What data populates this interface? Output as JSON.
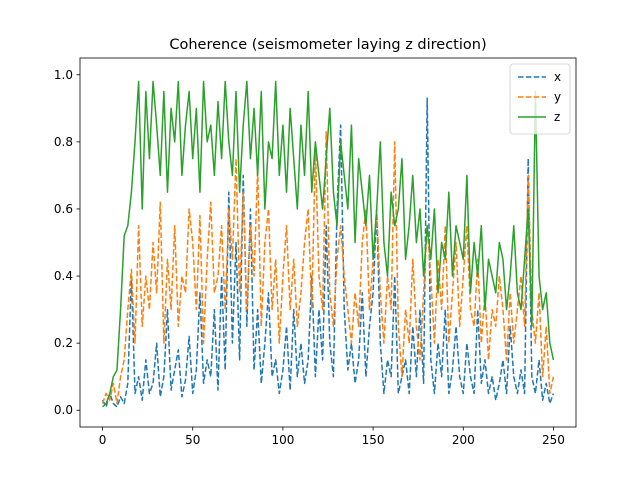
{
  "chart_data": {
    "type": "line",
    "title": "Coherence (seismometer laying z direction)",
    "xlabel": "",
    "ylabel": "",
    "xlim": [
      -12.5,
      262.5
    ],
    "ylim": [
      -0.05,
      1.05
    ],
    "xticks": [
      0,
      50,
      100,
      150,
      200,
      250
    ],
    "yticks": [
      0.0,
      0.2,
      0.4,
      0.6,
      0.8,
      1.0
    ],
    "xtick_labels": [
      "0",
      "50",
      "100",
      "150",
      "200",
      "250"
    ],
    "ytick_labels": [
      "0.0",
      "0.2",
      "0.4",
      "0.6",
      "0.8",
      "1.0"
    ],
    "grid": false,
    "legend": "top-right",
    "series": [
      {
        "name": "x",
        "color": "#1f77b4",
        "linestyle": "dashed",
        "x": [
          0,
          2,
          4,
          6,
          8,
          10,
          12,
          14,
          16,
          18,
          20,
          22,
          24,
          26,
          28,
          30,
          32,
          34,
          36,
          38,
          40,
          42,
          44,
          46,
          48,
          50,
          52,
          54,
          56,
          58,
          60,
          62,
          64,
          66,
          68,
          70,
          72,
          74,
          76,
          78,
          80,
          82,
          84,
          86,
          88,
          90,
          92,
          94,
          96,
          98,
          100,
          102,
          104,
          106,
          108,
          110,
          112,
          114,
          116,
          118,
          120,
          122,
          124,
          126,
          128,
          130,
          132,
          134,
          136,
          138,
          140,
          142,
          144,
          146,
          148,
          150,
          152,
          154,
          156,
          158,
          160,
          162,
          164,
          166,
          168,
          170,
          172,
          174,
          176,
          178,
          180,
          182,
          184,
          186,
          188,
          190,
          192,
          194,
          196,
          198,
          200,
          202,
          204,
          206,
          208,
          210,
          212,
          214,
          216,
          218,
          220,
          222,
          224,
          226,
          228,
          230,
          232,
          234,
          236,
          238,
          240,
          242,
          244,
          246,
          248,
          250
        ],
        "y": [
          0.03,
          0.01,
          0.05,
          0.02,
          0.01,
          0.04,
          0.02,
          0.08,
          0.4,
          0.05,
          0.1,
          0.03,
          0.15,
          0.05,
          0.08,
          0.2,
          0.04,
          0.1,
          0.3,
          0.06,
          0.12,
          0.18,
          0.04,
          0.09,
          0.22,
          0.05,
          0.12,
          0.35,
          0.08,
          0.15,
          0.1,
          0.3,
          0.06,
          0.4,
          0.12,
          0.65,
          0.2,
          0.5,
          0.15,
          0.7,
          0.25,
          0.6,
          0.12,
          0.3,
          0.08,
          0.2,
          0.35,
          0.1,
          0.15,
          0.05,
          0.12,
          0.25,
          0.06,
          0.3,
          0.1,
          0.2,
          0.08,
          0.15,
          0.4,
          0.1,
          0.3,
          0.15,
          0.55,
          0.2,
          0.1,
          0.6,
          0.85,
          0.3,
          0.12,
          0.2,
          0.08,
          0.15,
          0.35,
          0.1,
          0.25,
          0.35,
          0.6,
          0.2,
          0.05,
          0.15,
          0.1,
          0.4,
          0.05,
          0.1,
          0.15,
          0.05,
          0.25,
          0.1,
          0.3,
          0.08,
          0.93,
          0.15,
          0.05,
          0.2,
          0.1,
          0.3,
          0.05,
          0.12,
          0.25,
          0.1,
          0.05,
          0.2,
          0.1,
          0.05,
          0.3,
          0.08,
          0.15,
          0.05,
          0.1,
          0.03,
          0.08,
          0.15,
          0.05,
          0.25,
          0.1,
          0.05,
          0.12,
          0.05,
          0.75,
          0.1,
          0.05,
          0.15,
          0.03,
          0.08,
          0.02,
          0.05
        ]
      },
      {
        "name": "y",
        "color": "#ff7f0e",
        "linestyle": "dashed",
        "x": [
          0,
          2,
          4,
          6,
          8,
          10,
          12,
          14,
          16,
          18,
          20,
          22,
          24,
          26,
          28,
          30,
          32,
          34,
          36,
          38,
          40,
          42,
          44,
          46,
          48,
          50,
          52,
          54,
          56,
          58,
          60,
          62,
          64,
          66,
          68,
          70,
          72,
          74,
          76,
          78,
          80,
          82,
          84,
          86,
          88,
          90,
          92,
          94,
          96,
          98,
          100,
          102,
          104,
          106,
          108,
          110,
          112,
          114,
          116,
          118,
          120,
          122,
          124,
          126,
          128,
          130,
          132,
          134,
          136,
          138,
          140,
          142,
          144,
          146,
          148,
          150,
          152,
          154,
          156,
          158,
          160,
          162,
          164,
          166,
          168,
          170,
          172,
          174,
          176,
          178,
          180,
          182,
          184,
          186,
          188,
          190,
          192,
          194,
          196,
          198,
          200,
          202,
          204,
          206,
          208,
          210,
          212,
          214,
          216,
          218,
          220,
          222,
          224,
          226,
          228,
          230,
          232,
          234,
          236,
          238,
          240,
          242,
          244,
          246,
          248,
          250
        ],
        "y": [
          0.02,
          0.05,
          0.03,
          0.08,
          0.02,
          0.1,
          0.15,
          0.3,
          0.42,
          0.2,
          0.55,
          0.25,
          0.4,
          0.3,
          0.5,
          0.35,
          0.62,
          0.2,
          0.45,
          0.3,
          0.55,
          0.25,
          0.4,
          0.35,
          0.6,
          0.5,
          0.3,
          0.58,
          0.2,
          0.45,
          0.62,
          0.35,
          0.4,
          0.55,
          0.3,
          0.6,
          0.45,
          0.75,
          0.35,
          0.65,
          0.3,
          0.55,
          0.4,
          0.72,
          0.25,
          0.5,
          0.6,
          0.3,
          0.45,
          0.2,
          0.4,
          0.55,
          0.3,
          0.45,
          0.25,
          0.35,
          0.5,
          0.6,
          0.3,
          0.78,
          0.4,
          0.3,
          0.83,
          0.35,
          0.25,
          0.45,
          0.55,
          0.4,
          0.3,
          0.2,
          0.35,
          0.25,
          0.5,
          0.6,
          0.3,
          0.45,
          0.6,
          0.35,
          0.2,
          0.4,
          0.3,
          0.8,
          0.25,
          0.1,
          0.3,
          0.2,
          0.45,
          0.25,
          0.15,
          0.35,
          0.55,
          0.4,
          0.2,
          0.45,
          0.3,
          0.55,
          0.2,
          0.35,
          0.5,
          0.25,
          0.4,
          0.55,
          0.3,
          0.25,
          0.45,
          0.2,
          0.35,
          0.15,
          0.3,
          0.25,
          0.4,
          0.3,
          0.15,
          0.35,
          0.2,
          0.3,
          0.4,
          0.25,
          0.7,
          0.3,
          0.2,
          0.35,
          0.1,
          0.25,
          0.05,
          0.1
        ]
      },
      {
        "name": "z",
        "color": "#2ca02c",
        "linestyle": "solid",
        "x": [
          0,
          2,
          4,
          6,
          8,
          10,
          12,
          14,
          16,
          18,
          20,
          22,
          24,
          26,
          28,
          30,
          32,
          34,
          36,
          38,
          40,
          42,
          44,
          46,
          48,
          50,
          52,
          54,
          56,
          58,
          60,
          62,
          64,
          66,
          68,
          70,
          72,
          74,
          76,
          78,
          80,
          82,
          84,
          86,
          88,
          90,
          92,
          94,
          96,
          98,
          100,
          102,
          104,
          106,
          108,
          110,
          112,
          114,
          116,
          118,
          120,
          122,
          124,
          126,
          128,
          130,
          132,
          134,
          136,
          138,
          140,
          142,
          144,
          146,
          148,
          150,
          152,
          154,
          156,
          158,
          160,
          162,
          164,
          166,
          168,
          170,
          172,
          174,
          176,
          178,
          180,
          182,
          184,
          186,
          188,
          190,
          192,
          194,
          196,
          198,
          200,
          202,
          204,
          206,
          208,
          210,
          212,
          214,
          216,
          218,
          220,
          222,
          224,
          226,
          228,
          230,
          232,
          234,
          236,
          238,
          240,
          242,
          244,
          246,
          248,
          250
        ],
        "y": [
          0.01,
          0.02,
          0.05,
          0.1,
          0.12,
          0.3,
          0.52,
          0.55,
          0.65,
          0.8,
          0.98,
          0.6,
          0.95,
          0.75,
          0.98,
          0.85,
          0.7,
          0.95,
          0.65,
          0.9,
          0.8,
          0.98,
          0.7,
          0.85,
          0.95,
          0.75,
          0.9,
          0.65,
          0.98,
          0.8,
          0.85,
          0.7,
          0.92,
          0.75,
          0.98,
          0.8,
          0.7,
          0.95,
          0.65,
          0.85,
          0.98,
          0.75,
          0.9,
          0.7,
          0.95,
          0.6,
          0.8,
          0.75,
          0.98,
          0.7,
          0.85,
          0.65,
          0.9,
          0.75,
          0.6,
          0.85,
          0.7,
          0.95,
          0.65,
          0.8,
          0.7,
          0.6,
          0.75,
          0.9,
          0.65,
          0.55,
          0.8,
          0.7,
          0.6,
          0.85,
          0.5,
          0.75,
          0.65,
          0.55,
          0.7,
          0.45,
          0.6,
          0.8,
          0.5,
          0.4,
          0.65,
          0.55,
          0.6,
          0.75,
          0.45,
          0.55,
          0.7,
          0.5,
          0.6,
          0.4,
          0.55,
          0.45,
          0.6,
          0.35,
          0.5,
          0.45,
          0.65,
          0.4,
          0.55,
          0.5,
          0.45,
          0.7,
          0.35,
          0.5,
          0.4,
          0.55,
          0.3,
          0.45,
          0.4,
          0.35,
          0.5,
          0.45,
          0.3,
          0.4,
          0.55,
          0.35,
          0.3,
          0.45,
          0.6,
          0.25,
          0.95,
          0.4,
          0.3,
          0.35,
          0.2,
          0.15
        ]
      }
    ]
  }
}
